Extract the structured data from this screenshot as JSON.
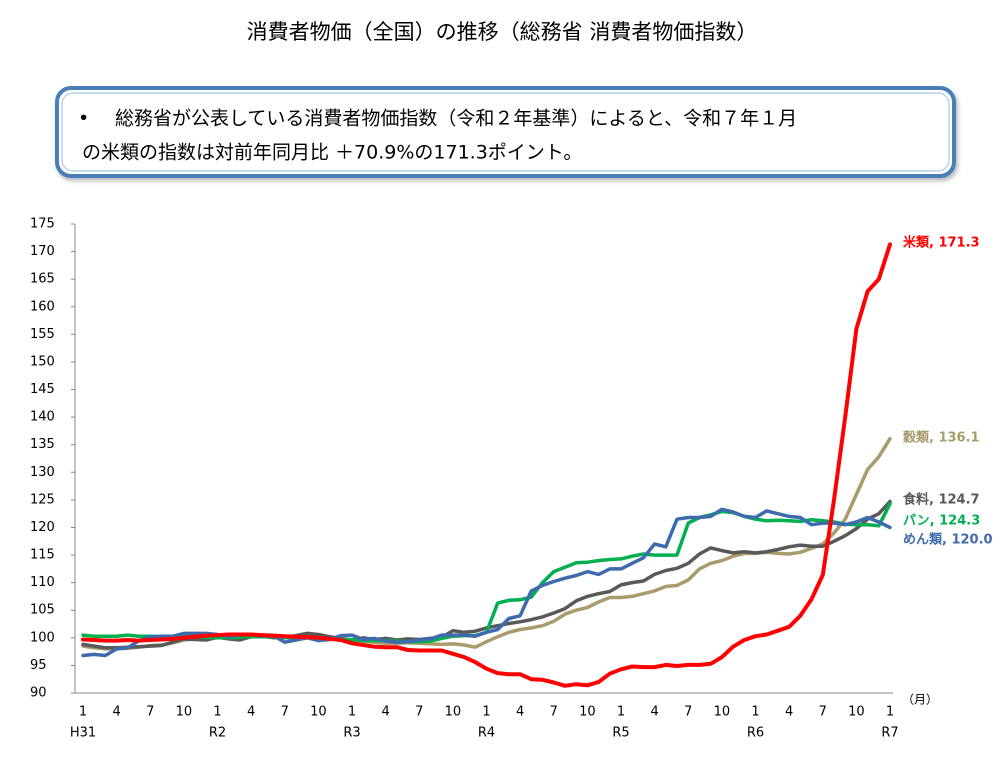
{
  "title": "消費者物価（全国）の推移（総務省 消費者物価指数）",
  "note": {
    "bullet": "•",
    "lines": [
      "総務省が公表している消費者物価指数（令和２年基準）によると、令和７年１月",
      "の米類の指数は対前年同月比 ＋70.9%の171.3ポイント。"
    ]
  },
  "chart_data": {
    "type": "line",
    "categories": [
      "1",
      null,
      null,
      "4",
      null,
      null,
      "7",
      null,
      null,
      "10",
      null,
      null,
      "1",
      null,
      null,
      "4",
      null,
      null,
      "7",
      null,
      null,
      "10",
      null,
      null,
      "1",
      null,
      null,
      "4",
      null,
      null,
      "7",
      null,
      null,
      "10",
      null,
      null,
      "1",
      null,
      null,
      "4",
      null,
      null,
      "7",
      null,
      null,
      "10",
      null,
      null,
      "1",
      null,
      null,
      "4",
      null,
      null,
      "7",
      null,
      null,
      "10",
      null,
      null,
      "1",
      null,
      null,
      "4",
      null,
      null,
      "7",
      null,
      null,
      "10",
      null,
      null,
      "1"
    ],
    "year_labels": [
      "H31",
      null,
      null,
      null,
      null,
      null,
      null,
      null,
      null,
      null,
      null,
      null,
      "R2",
      null,
      null,
      null,
      null,
      null,
      null,
      null,
      null,
      null,
      null,
      null,
      "R3",
      null,
      null,
      null,
      null,
      null,
      null,
      null,
      null,
      null,
      null,
      null,
      "R4",
      null,
      null,
      null,
      null,
      null,
      null,
      null,
      null,
      null,
      null,
      null,
      "R5",
      null,
      null,
      null,
      null,
      null,
      null,
      null,
      null,
      null,
      null,
      null,
      "R6",
      null,
      null,
      null,
      null,
      null,
      null,
      null,
      null,
      null,
      null,
      null,
      "R7"
    ],
    "x_unit": "（月）",
    "ylim": [
      90,
      175
    ],
    "yticks": [
      90,
      95,
      100,
      105,
      110,
      115,
      120,
      125,
      130,
      135,
      140,
      145,
      150,
      155,
      160,
      165,
      170,
      175
    ],
    "grid": false,
    "series": [
      {
        "name": "米類",
        "label": "米類, 171.3",
        "color": "#ff0000",
        "values": [
          99.7,
          99.6,
          99.5,
          99.5,
          99.6,
          99.5,
          99.6,
          99.7,
          99.8,
          100.0,
          100.2,
          100.4,
          100.5,
          100.6,
          100.6,
          100.6,
          100.5,
          100.4,
          100.3,
          100.2,
          100.1,
          100.0,
          99.8,
          99.6,
          99.0,
          98.7,
          98.4,
          98.3,
          98.3,
          97.8,
          97.7,
          97.7,
          97.7,
          97.1,
          96.5,
          95.6,
          94.4,
          93.6,
          93.4,
          93.4,
          92.5,
          92.4,
          91.9,
          91.3,
          91.6,
          91.4,
          92.0,
          93.5,
          94.3,
          94.8,
          94.7,
          94.7,
          95.1,
          94.9,
          95.1,
          95.1,
          95.3,
          96.5,
          98.4,
          99.6,
          100.3,
          100.6,
          101.3,
          102.0,
          104.0,
          107.0,
          111.4,
          125.0,
          140.0,
          156.0,
          162.8,
          165.0,
          171.3
        ]
      },
      {
        "name": "穀類",
        "label": "穀類, 136.1",
        "color": "#a89c6c",
        "values": [
          98.5,
          98.2,
          98.0,
          98.0,
          98.1,
          98.3,
          98.6,
          98.7,
          99.1,
          99.6,
          99.8,
          99.9,
          100.0,
          100.3,
          100.5,
          100.4,
          100.4,
          100.3,
          100.2,
          100.0,
          100.4,
          100.3,
          100.2,
          99.9,
          99.6,
          99.4,
          99.2,
          99.0,
          99.0,
          99.1,
          99.0,
          98.9,
          98.8,
          98.9,
          98.7,
          98.3,
          99.3,
          100.2,
          101.0,
          101.5,
          101.8,
          102.2,
          103.0,
          104.3,
          105.0,
          105.5,
          106.5,
          107.3,
          107.3,
          107.5,
          108.0,
          108.5,
          109.3,
          109.5,
          110.5,
          112.5,
          113.5,
          114.0,
          114.8,
          115.3,
          115.3,
          115.5,
          115.3,
          115.2,
          115.5,
          116.2,
          117.0,
          119.0,
          121.5,
          126.0,
          130.5,
          132.8,
          136.1
        ]
      },
      {
        "name": "食料",
        "label": "食料, 124.7",
        "color": "#595959",
        "values": [
          98.8,
          98.5,
          98.2,
          98.2,
          98.3,
          98.4,
          98.5,
          98.6,
          99.2,
          99.8,
          99.7,
          99.6,
          100.1,
          99.8,
          99.6,
          100.2,
          100.3,
          100.0,
          100.1,
          100.4,
          100.8,
          100.6,
          100.2,
          99.8,
          99.6,
          100.0,
          99.7,
          99.9,
          99.6,
          99.8,
          99.7,
          99.9,
          100.1,
          101.3,
          101.0,
          101.2,
          101.8,
          102.2,
          102.6,
          102.9,
          103.3,
          103.8,
          104.5,
          105.3,
          106.7,
          107.5,
          108.0,
          108.4,
          109.6,
          110.0,
          110.3,
          111.5,
          112.2,
          112.6,
          113.5,
          115.2,
          116.3,
          115.8,
          115.4,
          115.6,
          115.4,
          115.6,
          116.0,
          116.5,
          116.8,
          116.6,
          116.6,
          117.5,
          118.5,
          119.8,
          121.5,
          122.5,
          124.7
        ]
      },
      {
        "name": "パン",
        "label": "パン, 124.3",
        "color": "#00b050",
        "values": [
          100.5,
          100.3,
          100.3,
          100.3,
          100.5,
          100.3,
          100.3,
          100.2,
          100.2,
          100.3,
          100.2,
          100.1,
          100.0,
          100.0,
          100.1,
          100.2,
          100.2,
          100.2,
          100.0,
          100.0,
          100.1,
          99.8,
          99.8,
          99.6,
          99.7,
          99.5,
          99.5,
          99.5,
          99.4,
          99.3,
          99.3,
          99.4,
          99.9,
          100.3,
          100.4,
          100.4,
          101.0,
          106.3,
          106.8,
          106.9,
          107.4,
          110.0,
          112.0,
          112.8,
          113.6,
          113.7,
          114.0,
          114.2,
          114.3,
          114.8,
          115.2,
          115.0,
          115.0,
          115.0,
          120.8,
          121.8,
          122.3,
          122.9,
          122.7,
          122.0,
          121.5,
          121.2,
          121.3,
          121.2,
          121.1,
          121.4,
          121.2,
          121.0,
          120.6,
          120.5,
          120.5,
          120.3,
          124.3
        ]
      },
      {
        "name": "めん類",
        "label": "めん類, 120.0",
        "color": "#3e6bad",
        "values": [
          96.8,
          97.0,
          96.8,
          98.0,
          98.2,
          99.5,
          100.2,
          100.3,
          100.3,
          100.8,
          100.8,
          100.8,
          100.6,
          100.2,
          100.6,
          100.6,
          100.3,
          100.4,
          99.2,
          99.6,
          100.0,
          99.5,
          99.7,
          100.4,
          100.5,
          99.7,
          99.9,
          99.4,
          99.2,
          99.3,
          99.6,
          99.8,
          100.5,
          100.5,
          100.5,
          100.3,
          101.0,
          101.5,
          103.5,
          104.0,
          108.5,
          109.5,
          110.2,
          110.8,
          111.3,
          112.0,
          111.5,
          112.5,
          112.5,
          113.5,
          114.5,
          117.0,
          116.5,
          121.5,
          121.8,
          121.8,
          122.0,
          123.3,
          122.8,
          122.0,
          121.8,
          123.0,
          122.5,
          122.0,
          121.8,
          120.5,
          120.8,
          120.8,
          120.5,
          121.0,
          121.8,
          121.0,
          120.0
        ]
      }
    ]
  }
}
